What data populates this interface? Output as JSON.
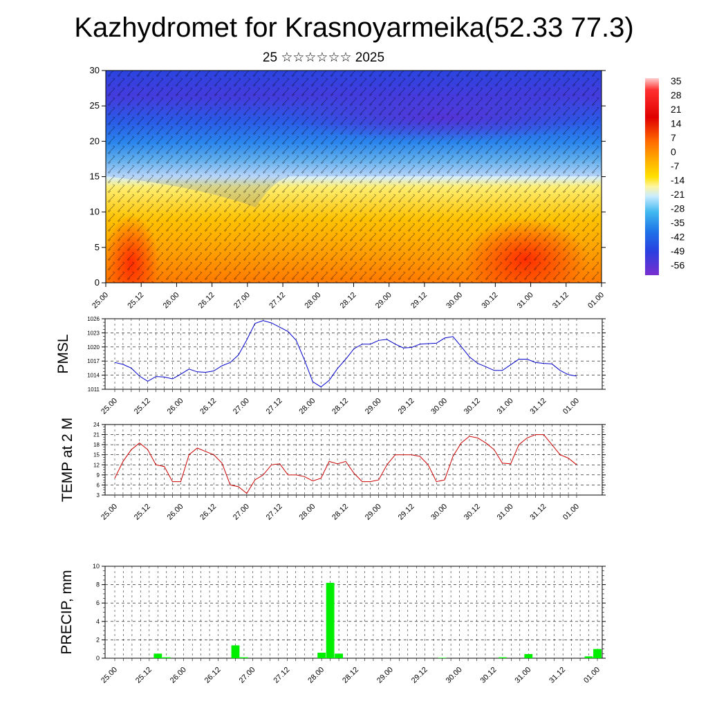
{
  "page": {
    "title": "Kazhydromet for Krasnoyarmeika(52.33 77.3)",
    "subtitle": "25 ☆☆☆☆☆☆ 2025"
  },
  "chart_data": [
    {
      "type": "heatmap",
      "name": "vertical-cross-section",
      "x_tick_labels": [
        "25.00",
        "25.12",
        "26.00",
        "26.12",
        "27.00",
        "27.12",
        "28.00",
        "28.12",
        "29.00",
        "29.12",
        "30.00",
        "30.12",
        "31.00",
        "31.12",
        "01.00"
      ],
      "y_ticks": [
        0,
        5,
        10,
        15,
        20,
        25,
        30
      ],
      "ylim": [
        0,
        30
      ],
      "colorbar": {
        "labels": [
          "35",
          "28",
          "21",
          "14",
          "7",
          "0",
          "-7",
          "-14",
          "-21",
          "-28",
          "-35",
          "-42",
          "-49",
          "-56"
        ],
        "range": [
          -63,
          42
        ],
        "colors": [
          "#ff6a00",
          "#ffa800",
          "#ffd800",
          "#fff6a0",
          "#aee4ff",
          "#4fb4f0",
          "#1e72e8",
          "#2a3fe0",
          "#5a28d8",
          "#7a2fd0"
        ]
      },
      "notes": "temperature shading with wind barbs"
    },
    {
      "type": "line",
      "name": "pmsl",
      "ylabel": "PMSL",
      "ylim": [
        1011,
        1026
      ],
      "y_ticks": [
        1011,
        1014,
        1017,
        1020,
        1023,
        1026
      ],
      "x_tick_labels": [
        "25.00",
        "25.12",
        "26.00",
        "26.12",
        "27.00",
        "27.12",
        "28.00",
        "28.12",
        "29.00",
        "29.12",
        "30.00",
        "30.12",
        "31.00",
        "31.12",
        "01.00"
      ],
      "series": [
        {
          "color": "#0000cc",
          "values": [
            1016.7,
            1016.3,
            1015.5,
            1013.8,
            1012.7,
            1013.7,
            1013.6,
            1013.2,
            1014.2,
            1015.3,
            1014.7,
            1014.6,
            1014.9,
            1016.0,
            1016.7,
            1018.3,
            1021.5,
            1025.0,
            1025.6,
            1025.1,
            1024.2,
            1023.3,
            1021.4,
            1017.2,
            1012.6,
            1011.5,
            1012.9,
            1015.4,
            1017.4,
            1019.6,
            1020.6,
            1020.6,
            1021.4,
            1021.6,
            1020.6,
            1019.8,
            1019.9,
            1020.6,
            1020.7,
            1020.8,
            1021.9,
            1022.2,
            1020.1,
            1017.9,
            1016.5,
            1015.8,
            1015.0,
            1015.0,
            1016.2,
            1017.4,
            1017.4,
            1016.7,
            1016.5,
            1016.4,
            1015.0,
            1014.1,
            1013.8
          ]
        }
      ]
    },
    {
      "type": "line",
      "name": "temp2m",
      "ylabel": "TEMP at 2 M",
      "ylim": [
        3,
        24
      ],
      "y_ticks": [
        3,
        6,
        9,
        12,
        15,
        18,
        21,
        24
      ],
      "x_tick_labels": [
        "25.00",
        "25.12",
        "26.00",
        "26.12",
        "27.00",
        "27.12",
        "28.00",
        "28.12",
        "29.00",
        "29.12",
        "30.00",
        "30.12",
        "31.00",
        "31.12",
        "01.00"
      ],
      "series": [
        {
          "color": "#cc0000",
          "values": [
            8.0,
            13.0,
            16.5,
            18.5,
            16.5,
            12.0,
            11.5,
            7.0,
            7.0,
            15.0,
            17.0,
            16.0,
            15.0,
            12.5,
            6.0,
            5.5,
            3.5,
            7.5,
            9.0,
            12.0,
            12.3,
            9.0,
            9.0,
            8.5,
            7.2,
            8.0,
            13.0,
            12.3,
            13.0,
            9.5,
            7.0,
            7.0,
            7.5,
            12.0,
            15.0,
            15.0,
            15.0,
            14.5,
            12.0,
            7.0,
            7.5,
            14.5,
            18.5,
            20.5,
            20.0,
            18.5,
            16.5,
            12.5,
            12.3,
            18.0,
            20.0,
            21.0,
            21.0,
            18.0,
            15.0,
            14.0,
            12.0
          ]
        }
      ]
    },
    {
      "type": "bar",
      "name": "precip",
      "ylabel": "PRECIP, mm",
      "ylim": [
        0,
        10
      ],
      "y_ticks": [
        0,
        2,
        4,
        6,
        8,
        10
      ],
      "x_tick_labels": [
        "25.00",
        "25.12",
        "26.00",
        "26.12",
        "27.00",
        "27.12",
        "28.00",
        "28.12",
        "29.00",
        "29.12",
        "30.00",
        "30.12",
        "31.00",
        "31.12",
        "01.00"
      ],
      "series": [
        {
          "color": "#00ee00",
          "values": [
            0,
            0,
            0,
            0,
            0,
            0.5,
            0.1,
            0,
            0,
            0,
            0,
            0,
            0,
            0,
            1.4,
            0.1,
            0,
            0,
            0,
            0,
            0,
            0,
            0,
            0,
            0.6,
            8.2,
            0.5,
            0,
            0,
            0,
            0,
            0,
            0,
            0,
            0,
            0,
            0,
            0,
            0.05,
            0,
            0,
            0,
            0,
            0,
            0,
            0.1,
            0,
            0,
            0.45,
            0,
            0,
            0,
            0,
            0,
            0,
            0.2,
            1.0
          ]
        }
      ]
    }
  ]
}
